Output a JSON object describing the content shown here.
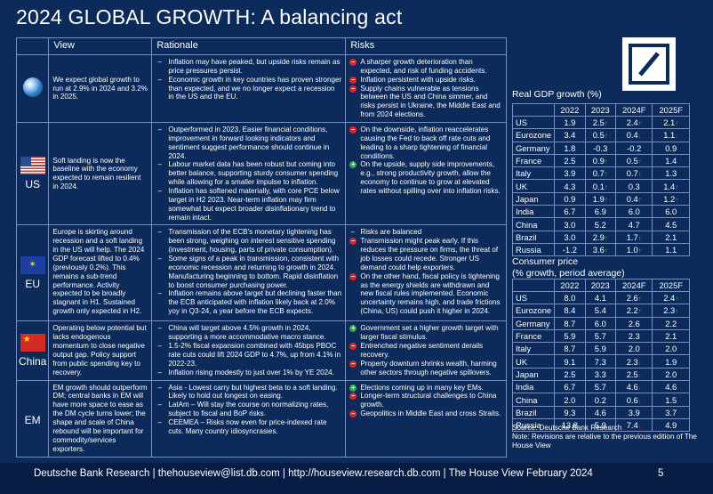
{
  "title": "2024 GLOBAL GROWTH: A balancing act",
  "headers": {
    "view": "View",
    "rationale": "Rationale",
    "risks": "Risks"
  },
  "rows": [
    {
      "icon": "globe-icon",
      "name": "",
      "view": "We expect global growth to run at 2.9% in 2024 and 3.2% in 2025.",
      "rationale": [
        "Inflation may have peaked, but upside risks remain as price pressures persist.",
        "Economic growth in key countries has proven stronger than expected, and we no longer expect a recession in the US and the EU."
      ],
      "risks": [
        {
          "s": "neg",
          "t": "A sharper growth deterioration than expected, and risk of funding accidents."
        },
        {
          "s": "neg",
          "t": "Inflation persistent with upside risks."
        },
        {
          "s": "neg",
          "t": "Supply chains vulnerable as tensions between the US and China simmer, and risks persist in Ukraine, the Middle East and from 2024 elections."
        }
      ]
    },
    {
      "icon": "us-flag-icon",
      "name": "US",
      "view": "Soft landing is now the baseline with the economy expected to remain resilient in 2024.",
      "rationale": [
        "Outperformed in 2023. Easier financial conditions, improvement in forward looking indicators and sentiment suggest performance should continue in 2024.",
        "Labour market data has been robust but coming into better balance, supporting sturdy consumer spending while allowing for a smaller impulse to inflation.",
        "Inflation has softened materially, with core PCE below target in H2 2023. Near-term inflation may firm somewhat but expect broader disinflationary trend to remain intact."
      ],
      "risks": [
        {
          "s": "neg",
          "t": "On the downside, inflation reaccelerates causing the Fed to back off rate cuts and leading to a sharp tightening of financial conditions."
        },
        {
          "s": "pos",
          "t": "On the upside, supply side improvements, e.g., strong productivity growth, allow the economy to continue to grow at elevated rates without spilling over into inflation risks."
        }
      ]
    },
    {
      "icon": "eu-flag-icon",
      "name": "EU",
      "view": "Europe is skirting around recession and a soft landing in the US will help. The 2024 GDP forecast lifted to 0.4% (previously 0.2%). This remains a sub-trend performance. Activity expected to be broadly stagnant in H1. Sustained growth only expected in H2.",
      "rationale": [
        "Transmission of the ECB's monetary tightening has been strong, weighing on interest sensitive spending (investment, housing, parts of private consumption).",
        "Some signs of a peak in transmission, consistent with economic recession and returning to growth in 2024. Manufacturing beginning to bottom. Rapid disinflation to boost consumer purchasing power.",
        "Inflation remains above target but declining faster than the ECB anticipated with inflation likely back at 2.0% yoy in Q3-24, a year before the ECB expects."
      ],
      "risks": [
        {
          "s": "dash",
          "t": "Risks are balanced"
        },
        {
          "s": "neg",
          "t": "Transmission might peak early. If this reduces the pressure on firms, the threat of job losses could recede. Stronger US demand could help exporters."
        },
        {
          "s": "neg",
          "t": "On the other hand, fiscal policy is tightening as the energy shields are withdrawn and new fiscal rules implemented. Economic uncertainty remains high, and trade frictions (China, US) could push it higher in 2024."
        }
      ]
    },
    {
      "icon": "china-flag-icon",
      "name": "China",
      "view": "Operating below potential but lacks endogenous momentum to close negative output gap. Policy support from public spending key to recovery.",
      "rationale": [
        "China will target above 4.5% growth in 2024, supporting a more accommodative macro stance.",
        "1.5-2% fiscal expansion combined with 45bps PBOC rate cuts could lift 2024 GDP to 4.7%, up from 4.1% in 2022-23.",
        "Inflation rising modestly to just over 1% by YE 2024."
      ],
      "risks": [
        {
          "s": "pos",
          "t": "Government set a higher growth target with larger fiscal stimulus."
        },
        {
          "s": "neg",
          "t": "Entrenched negative sentiment derails recovery."
        },
        {
          "s": "neg",
          "t": "Property downturn shrinks wealth, harming other sectors through negative spillovers."
        }
      ]
    },
    {
      "icon": "",
      "name": "EM",
      "view": "EM growth should outperform DM; central banks in EM will have more space to ease as the DM cycle turns lower; the shape and scale of China rebound will be important for commodity/services exporters.",
      "rationale": [
        "Asia - Lowest carry but highest beta to a soft landing. Likely to hold out longest on easing.",
        "LatAm – Will stay the course on normalizing rates, subject to fiscal and BoP risks.",
        "CEEMEA – Risks now even for price-indexed rate cuts. Many country idiosyncrasies."
      ],
      "risks": [
        {
          "s": "pos",
          "t": "Elections coming up in many key EMs."
        },
        {
          "s": "neg",
          "t": "Longer-term structural challenges to China growth."
        },
        {
          "s": "neg",
          "t": "Geopolitics in Middle East and cross Straits."
        }
      ]
    }
  ],
  "gdp": {
    "title": "Real GDP growth (%)",
    "cols": [
      "",
      "2022",
      "2023",
      "2024F",
      "2025F"
    ],
    "rows": [
      [
        "US",
        "1.9",
        "2.5",
        "up",
        "2.4",
        "up",
        "2.1",
        "up"
      ],
      [
        "Eurozone",
        "3.4",
        "0.5",
        "up",
        "0.4",
        "down",
        "1.1",
        "down"
      ],
      [
        "Germany",
        "1.8",
        "-0.3",
        "",
        "-0.2",
        "",
        "0.9",
        ""
      ],
      [
        "France",
        "2.5",
        "0.9",
        "up",
        "0.5",
        "up",
        "1.4",
        ""
      ],
      [
        "Italy",
        "3.9",
        "0.7",
        "up",
        "0.7",
        "up",
        "1.3",
        ""
      ],
      [
        "UK",
        "4.3",
        "0.1",
        "up",
        "0.3",
        "",
        "1.4",
        "up"
      ],
      [
        "Japan",
        "0.9",
        "1.9",
        "up",
        "0.4",
        "up",
        "1.2",
        "up"
      ],
      [
        "India",
        "6.7",
        "6.9",
        "",
        "6.0",
        "",
        "6.0",
        ""
      ],
      [
        "China",
        "3.0",
        "5.2",
        "",
        "4.7",
        "",
        "4.5",
        ""
      ],
      [
        "Brazil",
        "3.0",
        "2.9",
        "up",
        "1.7",
        "up",
        "2.1",
        ""
      ],
      [
        "Russia",
        "-1.2",
        "3.6",
        "up",
        "1.0",
        "up",
        "1.1",
        ""
      ]
    ]
  },
  "cpi": {
    "title": "Consumer price\n(% growth, period average)",
    "title1": "Consumer price",
    "title2": "(% growth, period average)",
    "cols": [
      "",
      "2022",
      "2023",
      "2024F",
      "2025F"
    ],
    "rows": [
      [
        "US",
        "8.0",
        "4.1",
        "",
        "2.6",
        "up",
        "2.4",
        "up"
      ],
      [
        "Eurozone",
        "8.4",
        "5.4",
        "",
        "2.2",
        "up",
        "2.3",
        "up"
      ],
      [
        "Germany",
        "8.7",
        "6.0",
        "",
        "2.6",
        "",
        "2.2",
        ""
      ],
      [
        "France",
        "5.9",
        "5.7",
        "",
        "2.3",
        "",
        "2.1",
        ""
      ],
      [
        "Italy",
        "8.7",
        "5.9",
        "",
        "2.0",
        "",
        "2.0",
        ""
      ],
      [
        "UK",
        "9.1",
        "7.3",
        "",
        "2.3",
        "down",
        "1.9",
        ""
      ],
      [
        "Japan",
        "2.5",
        "3.3",
        "",
        "2.5",
        "down",
        "2.0",
        ""
      ],
      [
        "India",
        "6.7",
        "5.7",
        "",
        "4.6",
        "down",
        "4.6",
        ""
      ],
      [
        "China",
        "2.0",
        "0.2",
        "",
        "0.6",
        "down",
        "1.5",
        ""
      ],
      [
        "Brazil",
        "9.3",
        "4.6",
        "",
        "3.9",
        "",
        "3.7",
        ""
      ],
      [
        "Russia",
        "13.8",
        "5.9",
        "",
        "7.4",
        "down",
        "4.9",
        ""
      ]
    ]
  },
  "source": "Source: Deutsche Bank Research",
  "note": "Note: Revisions are relative to the previous edition of The House View",
  "footer": "Deutsche Bank Research  |  thehouseview@list.db.com  |  http://houseview.research.db.com  |  The House View February 2024",
  "page": "5",
  "colors": {
    "background": "#0c2a5a",
    "positive": "#2ea54d",
    "negative": "#d9262b"
  }
}
